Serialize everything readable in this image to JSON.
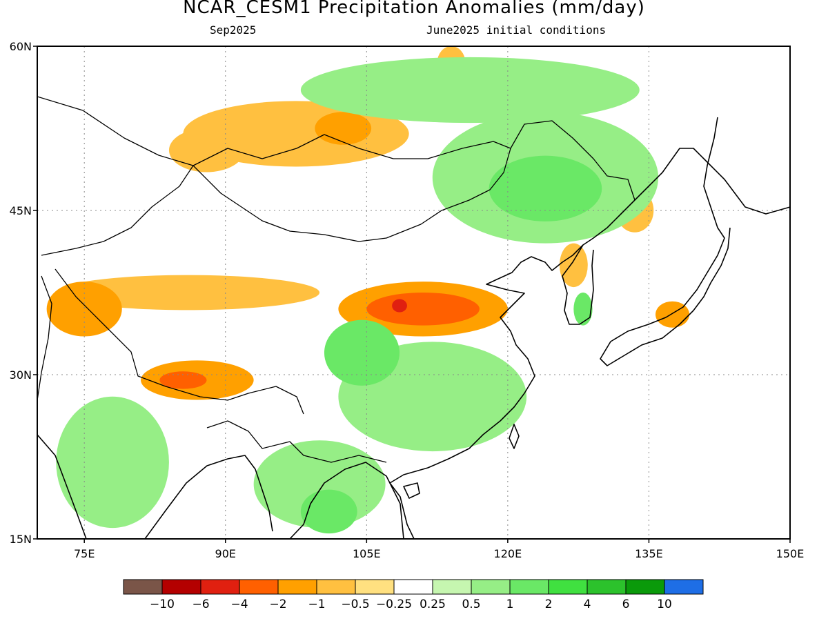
{
  "title": "NCAR_CESM1 Precipitation Anomalies (mm/day)",
  "subtitle_left": "Sep2025",
  "subtitle_right": "June2025 initial conditions",
  "map": {
    "lon_range": [
      70,
      150
    ],
    "lat_range": [
      15,
      60
    ],
    "lon_ticks": [
      "75E",
      "90E",
      "105E",
      "120E",
      "135E",
      "150E"
    ],
    "lat_ticks": [
      "60N",
      "45N",
      "30N",
      "15N"
    ],
    "gridlines": "dotted"
  },
  "colorbar": {
    "colors": [
      "#7a5548",
      "#b40000",
      "#e02010",
      "#ff6000",
      "#ffa000",
      "#ffc040",
      "#ffe080",
      "#ffffff",
      "#c6f6b0",
      "#96ee86",
      "#6ae866",
      "#40e040",
      "#2cc22c",
      "#0a9a0a",
      "#1e6ee6"
    ],
    "labels": [
      "-10",
      "-6",
      "-4",
      "-2",
      "-1",
      "-0.5",
      "-0.25",
      "0.25",
      "0.5",
      "1",
      "2",
      "4",
      "6",
      "10"
    ]
  },
  "anomaly_regions": [
    {
      "level": "-0.5",
      "desc": "Mongolia north",
      "lon": 97.5,
      "lat": 52,
      "rx": 12,
      "ry": 3
    },
    {
      "level": "-1",
      "desc": "Mongolia north core",
      "lon": 102.5,
      "lat": 52.5,
      "rx": 3,
      "ry": 1.5
    },
    {
      "level": "-0.5",
      "desc": "Altai",
      "lon": 88,
      "lat": 50.5,
      "rx": 4,
      "ry": 2
    },
    {
      "level": "-0.5",
      "desc": "Siberia north",
      "lon": 114,
      "lat": 58.5,
      "rx": 1.5,
      "ry": 1.5
    },
    {
      "level": "-1",
      "desc": "North China Loess",
      "lon": 111,
      "lat": 36,
      "rx": 9,
      "ry": 2.5
    },
    {
      "level": "-2",
      "desc": "North China core",
      "lon": 111,
      "lat": 36,
      "rx": 6,
      "ry": 1.5
    },
    {
      "level": "-4",
      "desc": "Shaanxi peak",
      "lon": 108.5,
      "lat": 36.3,
      "rx": 0.8,
      "ry": 0.6
    },
    {
      "level": "-0.5",
      "desc": "Tarim",
      "lon": 86,
      "lat": 37.5,
      "rx": 14,
      "ry": 1.6
    },
    {
      "level": "-1",
      "desc": "Karakoram",
      "lon": 75,
      "lat": 36,
      "rx": 4,
      "ry": 2.5
    },
    {
      "level": "-1",
      "desc": "Nepal",
      "lon": 87,
      "lat": 29.5,
      "rx": 6,
      "ry": 1.8
    },
    {
      "level": "-2",
      "desc": "Nepal core",
      "lon": 85.5,
      "lat": 29.5,
      "rx": 2.5,
      "ry": 0.8
    },
    {
      "level": "-0.5",
      "desc": "Korea north",
      "lon": 127,
      "lat": 40,
      "rx": 1.5,
      "ry": 2
    },
    {
      "level": "-0.5",
      "desc": "Russian Far East",
      "lon": 133.5,
      "lat": 45,
      "rx": 2,
      "ry": 2
    },
    {
      "level": "-1",
      "desc": "Japan Kanto",
      "lon": 137.5,
      "lat": 35.5,
      "rx": 1.8,
      "ry": 1.2
    },
    {
      "level": "0.5",
      "desc": "Manchuria",
      "lon": 124,
      "lat": 48,
      "rx": 12,
      "ry": 6
    },
    {
      "level": "1",
      "desc": "Manchuria core",
      "lon": 124,
      "lat": 47,
      "rx": 6,
      "ry": 3
    },
    {
      "level": "0.5",
      "desc": "Yangtze",
      "lon": 112,
      "lat": 28,
      "rx": 10,
      "ry": 5
    },
    {
      "level": "1",
      "desc": "Sichuan",
      "lon": 104.5,
      "lat": 32,
      "rx": 4,
      "ry": 3
    },
    {
      "level": "0.5",
      "desc": "India northwest",
      "lon": 78,
      "lat": 22,
      "rx": 6,
      "ry": 6
    },
    {
      "level": "0.5",
      "desc": "Myanmar/Thailand",
      "lon": 100,
      "lat": 20,
      "rx": 7,
      "ry": 4
    },
    {
      "level": "1",
      "desc": "Thailand core",
      "lon": 101,
      "lat": 17.5,
      "rx": 3,
      "ry": 2
    },
    {
      "level": "0.5",
      "desc": "Siberia",
      "lon": 116,
      "lat": 56,
      "rx": 18,
      "ry": 3
    },
    {
      "level": "1",
      "desc": "Korea south",
      "lon": 128,
      "lat": 36,
      "rx": 1,
      "ry": 1.5
    }
  ]
}
